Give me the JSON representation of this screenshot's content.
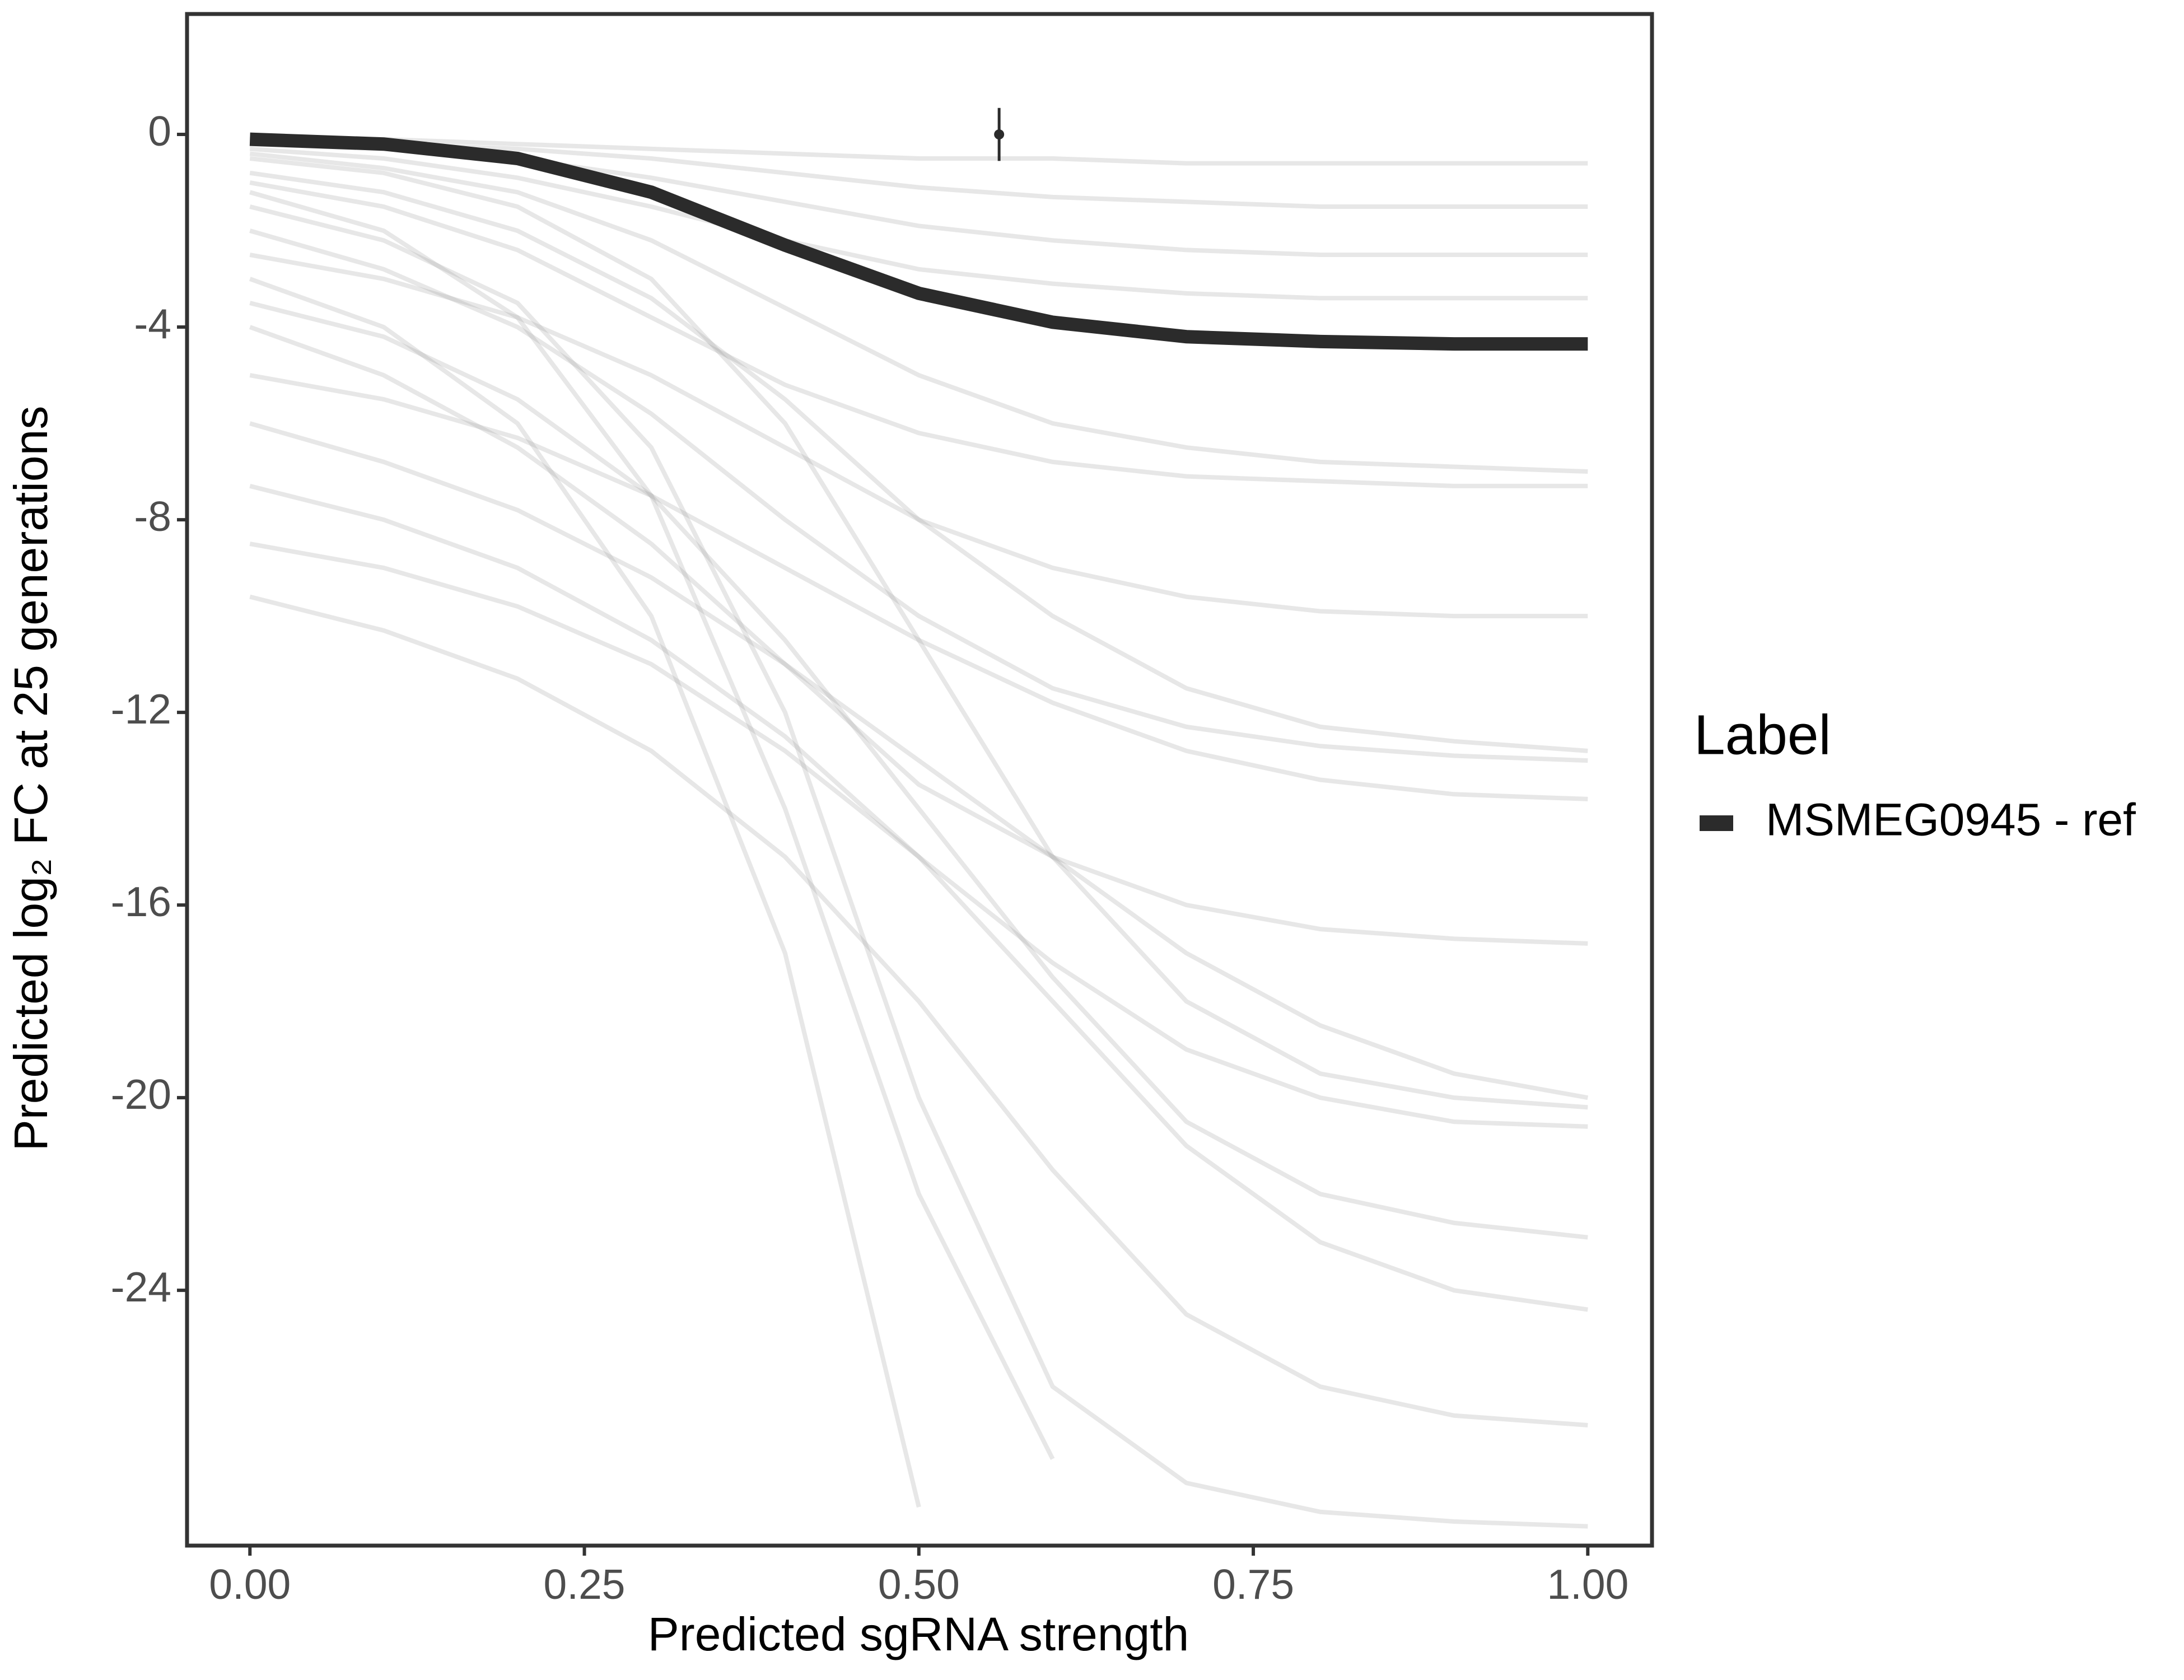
{
  "chart_data": {
    "type": "line",
    "x_label": "Predicted sgRNA strength",
    "y_label": "Predicted  log₂ FC at 25 generations",
    "legend_title": "Label",
    "legend_position": "right",
    "xlim": [
      -0.047,
      1.048
    ],
    "ylim": [
      -29.3,
      2.5
    ],
    "xticks": [
      {
        "value": 0,
        "label": "0.00"
      },
      0.25,
      {
        "value": 0.5,
        "label": "0.50"
      },
      0.75,
      {
        "value": 1,
        "label": "1.00"
      }
    ],
    "yticks": [
      0,
      -4,
      -8,
      -12,
      -16,
      -20,
      -24
    ],
    "x": [
      0,
      0.1,
      0.2,
      0.3,
      0.4,
      0.5,
      0.6,
      0.7,
      0.8,
      0.9,
      1.0
    ],
    "background_color": "#9e9e9e",
    "background_series": [
      [
        -0.1,
        -0.1,
        -0.2,
        -0.3,
        -0.4,
        -0.5,
        -0.5,
        -0.6,
        -0.6,
        -0.6,
        -0.6
      ],
      [
        -0.3,
        -0.5,
        -0.9,
        -1.5,
        -2.2,
        -2.8,
        -3.1,
        -3.3,
        -3.4,
        -3.4,
        -3.4
      ],
      [
        -1.0,
        -1.5,
        -2.4,
        -3.8,
        -5.2,
        -6.2,
        -6.8,
        -7.1,
        -7.2,
        -7.3,
        -7.3
      ],
      [
        -2.0,
        -2.8,
        -4.0,
        -5.8,
        -8.0,
        -10.0,
        -11.5,
        -12.3,
        -12.7,
        -12.9,
        -13.0
      ],
      [
        -0.5,
        -0.8,
        -1.5,
        -3.0,
        -6.0,
        -10.5,
        -15.0,
        -18.0,
        -19.5,
        -20.0,
        -20.2
      ],
      [
        -1.5,
        -2.2,
        -3.5,
        -6.5,
        -12.0,
        -20.0,
        -26.0,
        -28.0,
        -28.6,
        -28.8,
        -28.9
      ],
      [
        -3.0,
        -4.0,
        -6.0,
        -10.0,
        -17.0,
        -28.5,
        null,
        null,
        null,
        null,
        null
      ],
      [
        -4.0,
        -5.0,
        -6.5,
        -8.5,
        -11.0,
        -13.5,
        -15.0,
        -16.0,
        -16.5,
        -16.7,
        -16.8
      ],
      [
        -6.0,
        -6.8,
        -7.8,
        -9.2,
        -11.0,
        -13.0,
        -15.0,
        -17.0,
        -18.5,
        -19.5,
        -20.0
      ],
      [
        -7.3,
        -8.0,
        -9.0,
        -10.5,
        -12.5,
        -15.0,
        -18.0,
        -21.0,
        -23.0,
        -24.0,
        -24.4
      ],
      [
        -9.6,
        -10.3,
        -11.3,
        -12.8,
        -15.0,
        -18.0,
        -21.5,
        -24.5,
        -26.0,
        -26.6,
        -26.8
      ],
      [
        -0.2,
        -0.3,
        -0.5,
        -0.9,
        -1.4,
        -1.9,
        -2.2,
        -2.4,
        -2.5,
        -2.5,
        -2.5
      ],
      [
        -0.4,
        -0.7,
        -1.2,
        -2.2,
        -3.6,
        -5.0,
        -6.0,
        -6.5,
        -6.8,
        -6.9,
        -7.0
      ],
      [
        -2.5,
        -3.0,
        -3.8,
        -5.0,
        -6.5,
        -8.0,
        -9.0,
        -9.6,
        -9.9,
        -10.0,
        -10.0
      ],
      [
        -5.0,
        -5.5,
        -6.3,
        -7.5,
        -9.0,
        -10.5,
        -11.8,
        -12.8,
        -13.4,
        -13.7,
        -13.8
      ],
      [
        -1.2,
        -2.0,
        -3.8,
        -7.5,
        -14.0,
        -22.0,
        -27.5,
        null,
        null,
        null,
        null
      ],
      [
        -0.8,
        -1.2,
        -2.0,
        -3.4,
        -5.5,
        -8.0,
        -10.0,
        -11.5,
        -12.3,
        -12.6,
        -12.8
      ],
      [
        -3.5,
        -4.2,
        -5.5,
        -7.5,
        -10.5,
        -14.0,
        -17.5,
        -20.5,
        -22.0,
        -22.6,
        -22.9
      ],
      [
        -0.1,
        -0.2,
        -0.3,
        -0.5,
        -0.8,
        -1.1,
        -1.3,
        -1.4,
        -1.5,
        -1.5,
        -1.5
      ],
      [
        -8.5,
        -9.0,
        -9.8,
        -11.0,
        -12.8,
        -15.0,
        -17.2,
        -19.0,
        -20.0,
        -20.5,
        -20.6
      ]
    ],
    "series": [
      {
        "name": "MSMEG0945 - ref",
        "color": "#2b2b2b",
        "values": [
          -0.1,
          -0.2,
          -0.5,
          -1.2,
          -2.3,
          -3.3,
          -3.9,
          -4.2,
          -4.3,
          -4.35,
          -4.35
        ]
      }
    ],
    "errorbar": {
      "x": 0.56,
      "y": 0,
      "error": 0.55
    }
  }
}
